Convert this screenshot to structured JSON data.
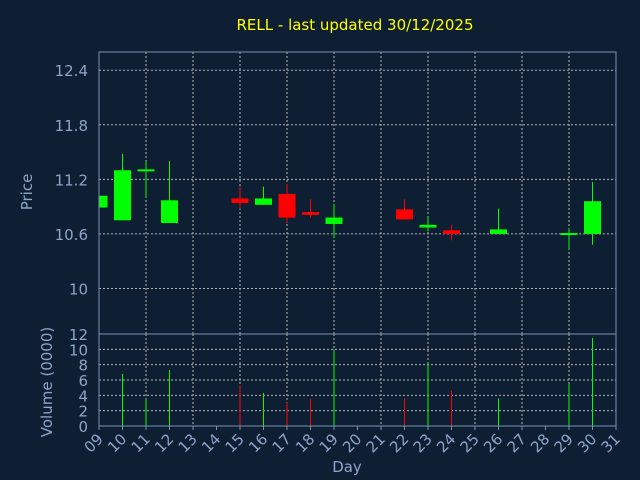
{
  "chart_data": {
    "type": "candlestick",
    "title": "RELL - last updated 30/12/2025",
    "xlabel": "Day",
    "ylabel_price": "Price",
    "ylabel_volume": "Volume (0000)",
    "price_ylim": [
      9.5,
      12.6
    ],
    "price_ticks": [
      "12.4",
      "11.8",
      "11.2",
      "10.6",
      "10"
    ],
    "volume_ylim": [
      0,
      12
    ],
    "volume_ticks": [
      "12",
      "10",
      "8",
      "6",
      "4",
      "2",
      "0"
    ],
    "x_ticks": [
      "09",
      "10",
      "11",
      "12",
      "13",
      "14",
      "15",
      "16",
      "17",
      "18",
      "19",
      "20",
      "21",
      "22",
      "23",
      "24",
      "25",
      "26",
      "27",
      "28",
      "29",
      "30",
      "31"
    ],
    "grid": true,
    "colors": {
      "background": "#0f1f33",
      "axis": "#7a90b0",
      "grid": "#b4b4b4",
      "title": "#ffff00",
      "label": "#8ca5c8",
      "up": "#00ff00",
      "down": "#ff0000"
    },
    "candles": [
      {
        "day": 9,
        "open": 10.89,
        "close": 11.02,
        "high": 11.02,
        "low": 10.89,
        "volume": 0
      },
      {
        "day": 10,
        "open": 10.75,
        "close": 11.3,
        "high": 11.48,
        "low": 10.75,
        "volume": 6.8
      },
      {
        "day": 11,
        "open": 11.29,
        "close": 11.31,
        "high": 11.4,
        "low": 11.0,
        "volume": 3.5
      },
      {
        "day": 12,
        "open": 10.72,
        "close": 10.97,
        "high": 11.4,
        "low": 10.72,
        "volume": 7.3
      },
      {
        "day": 15,
        "open": 10.99,
        "close": 10.94,
        "high": 11.12,
        "low": 10.88,
        "volume": 5.2
      },
      {
        "day": 16,
        "open": 10.92,
        "close": 10.99,
        "high": 11.12,
        "low": 10.92,
        "volume": 4.3
      },
      {
        "day": 17,
        "open": 11.04,
        "close": 10.78,
        "high": 11.15,
        "low": 10.72,
        "volume": 3.1
      },
      {
        "day": 18,
        "open": 10.84,
        "close": 10.81,
        "high": 10.98,
        "low": 10.78,
        "volume": 3.5
      },
      {
        "day": 19,
        "open": 10.71,
        "close": 10.78,
        "high": 10.93,
        "low": 10.56,
        "volume": 10.0
      },
      {
        "day": 22,
        "open": 10.87,
        "close": 10.76,
        "high": 10.98,
        "low": 10.76,
        "volume": 3.6
      },
      {
        "day": 23,
        "open": 10.67,
        "close": 10.7,
        "high": 10.79,
        "low": 10.63,
        "volume": 8.2
      },
      {
        "day": 24,
        "open": 10.64,
        "close": 10.6,
        "high": 10.7,
        "low": 10.53,
        "volume": 4.6
      },
      {
        "day": 26,
        "open": 10.6,
        "close": 10.65,
        "high": 10.88,
        "low": 10.6,
        "volume": 3.6
      },
      {
        "day": 29,
        "open": 10.6,
        "close": 10.61,
        "high": 10.66,
        "low": 10.43,
        "volume": 5.5
      },
      {
        "day": 30,
        "open": 10.6,
        "close": 10.96,
        "high": 11.17,
        "low": 10.48,
        "volume": 11.5
      }
    ]
  }
}
